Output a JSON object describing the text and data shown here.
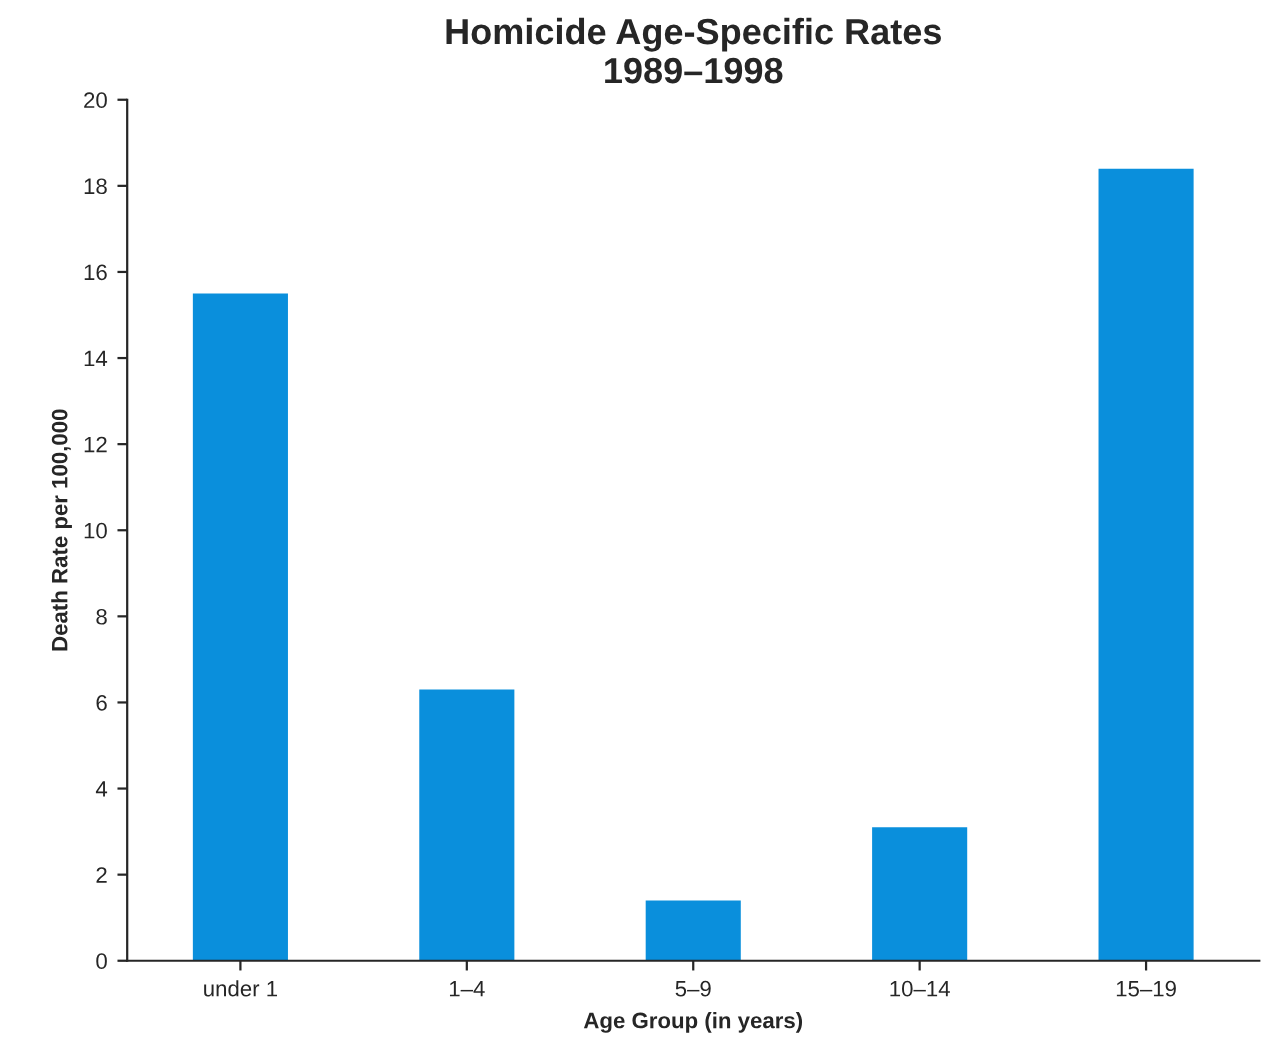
{
  "chart_data": {
    "type": "bar",
    "title": "Homicide Age-Specific Rates\n1989–1998",
    "xlabel": "Age Group (in years)",
    "ylabel": "Death Rate per 100,000",
    "categories": [
      "under 1",
      "1–4",
      "5–9",
      "10–14",
      "15–19"
    ],
    "values": [
      15.5,
      6.3,
      1.4,
      3.1,
      18.4
    ],
    "color": "#0a8fdc",
    "ylim": [
      0,
      20
    ],
    "yticks": [
      0,
      2,
      4,
      6,
      8,
      10,
      12,
      14,
      16,
      18,
      20
    ],
    "grid": false,
    "legend": false
  }
}
